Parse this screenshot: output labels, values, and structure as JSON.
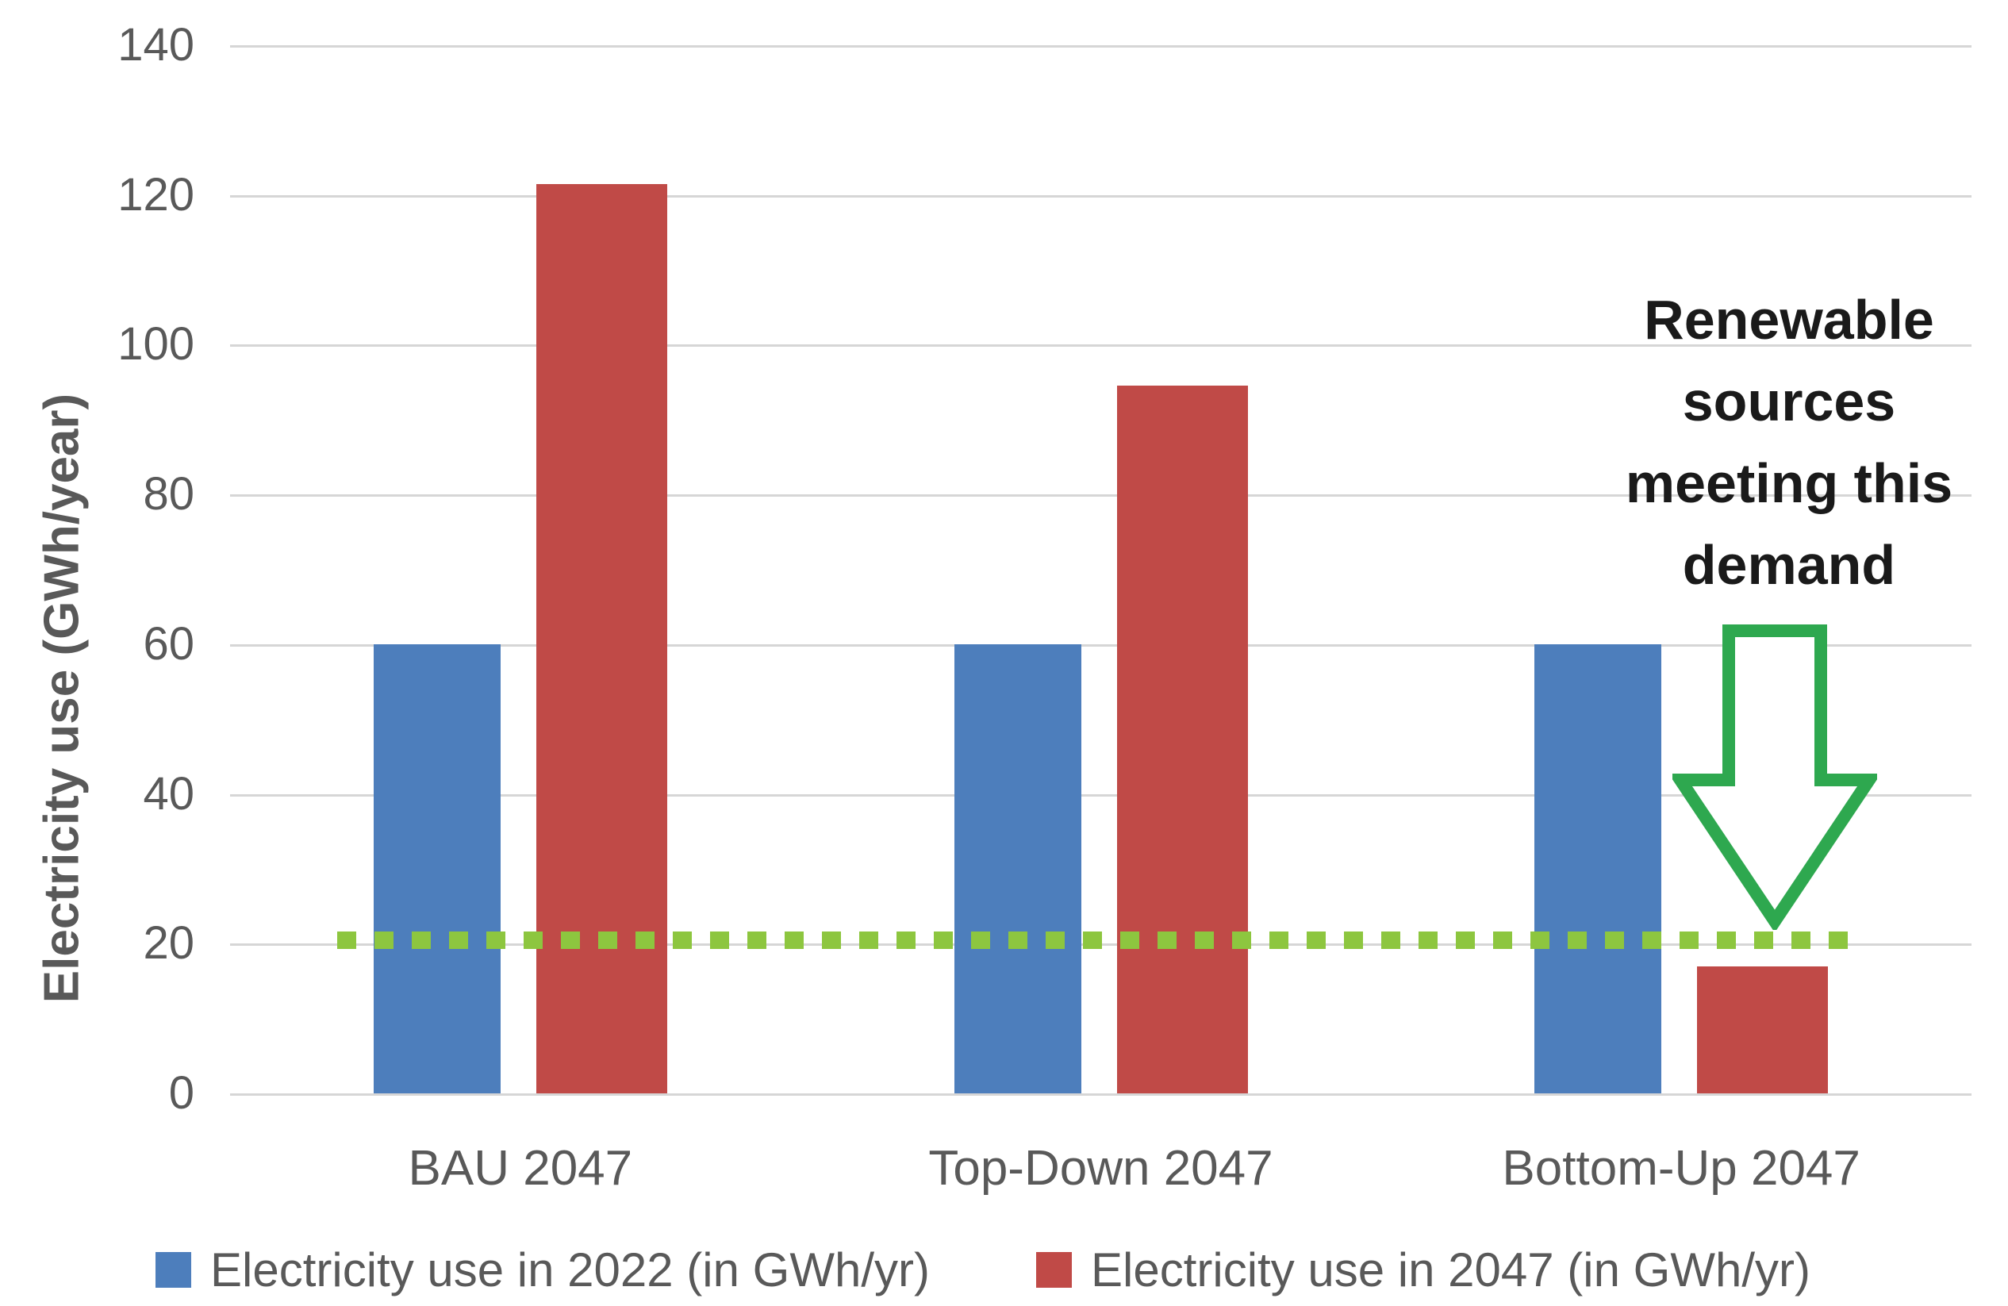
{
  "page": {
    "background": "#FFFFFF"
  },
  "chart_data": {
    "type": "bar",
    "title": "",
    "xlabel": "",
    "ylabel": "Electricity use (GWh/year)",
    "categories": [
      "BAU 2047",
      "Top-Down 2047",
      "Bottom-Up 2047"
    ],
    "series": [
      {
        "name": "Electricity use in 2022 (in GWh/yr)",
        "color": "#4D7EBC",
        "values": [
          60,
          60,
          60
        ]
      },
      {
        "name": "Electricity use in 2047 (in GWh/yr)",
        "color": "#C04A47",
        "values": [
          121.5,
          94.5,
          17
        ]
      }
    ],
    "ylim": [
      0,
      140
    ],
    "yticks": [
      0,
      20,
      40,
      60,
      80,
      100,
      120,
      140
    ],
    "grid": true,
    "gridline_color": "#D6D6D6",
    "axis_text_color": "#595959",
    "legend_position": "bottom",
    "reference_line": {
      "value": 20.5,
      "style": "dotted",
      "color": "#8DC63F"
    }
  },
  "annotation": {
    "text": "Renewable sources meeting this demand",
    "lines": [
      "Renewable",
      "sources",
      "meeting this",
      "demand"
    ],
    "text_color": "#1A1A1A",
    "arrow_icon": "down-arrow-outline",
    "arrow_color": "#2EA84F",
    "arrow_fill": "#FFFFFF"
  }
}
